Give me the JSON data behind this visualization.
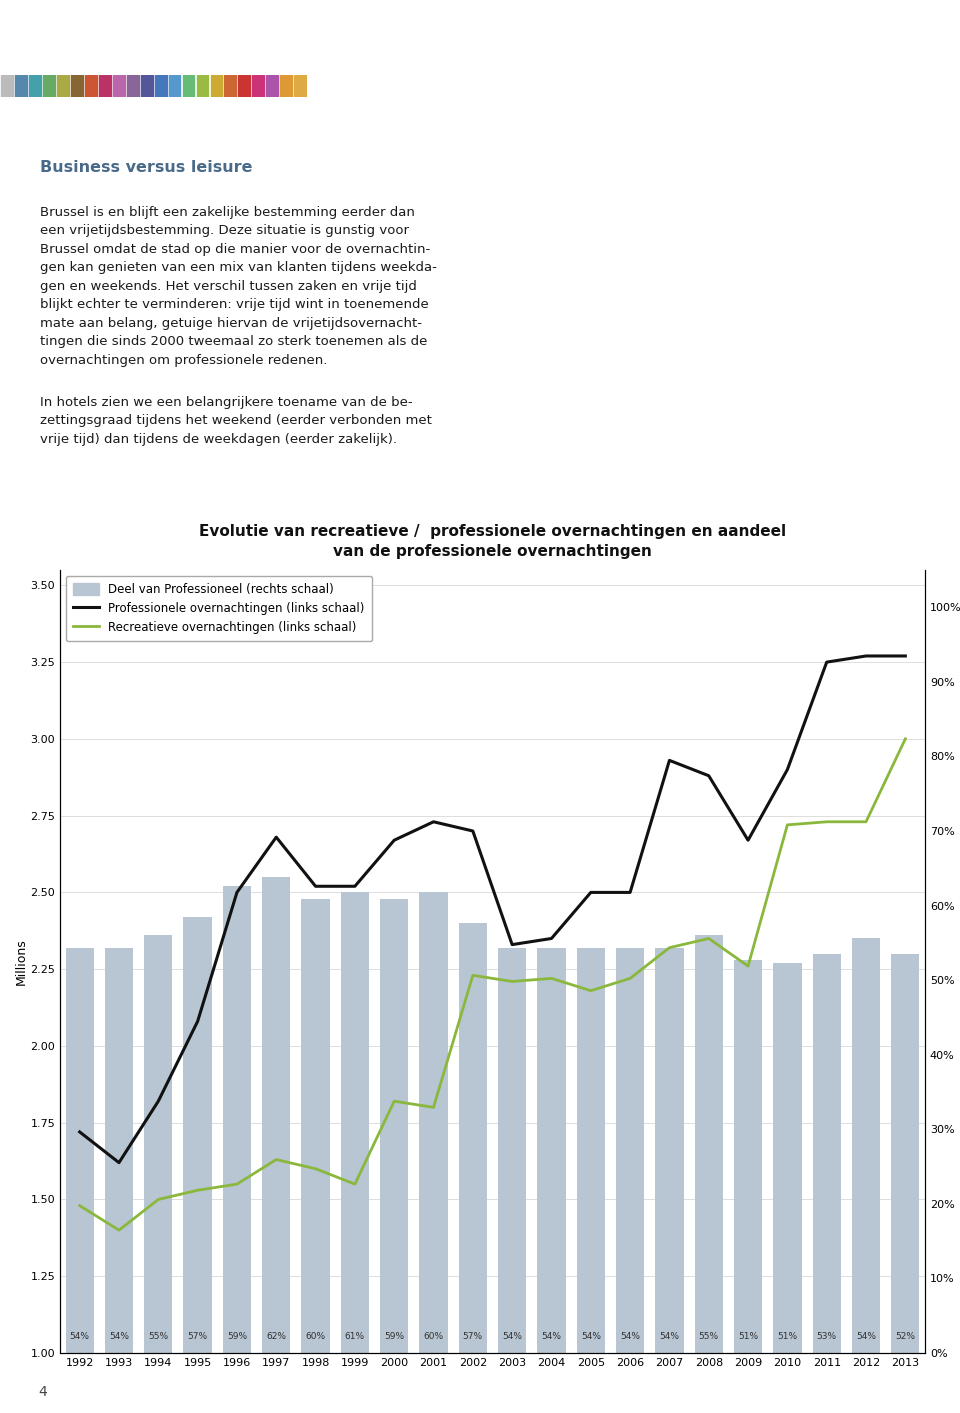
{
  "title_line1": "Evolutie van recreatieve /  professionele overnachtingen en aandeel",
  "title_line2": "van de professionele overnachtingen",
  "header_bg": "#5f7080",
  "years": [
    1992,
    1993,
    1994,
    1995,
    1996,
    1997,
    1998,
    1999,
    2000,
    2001,
    2002,
    2003,
    2004,
    2005,
    2006,
    2007,
    2008,
    2009,
    2010,
    2011,
    2012,
    2013
  ],
  "bar_values": [
    2.32,
    2.32,
    2.36,
    2.42,
    2.52,
    2.55,
    2.48,
    2.5,
    2.48,
    2.5,
    2.4,
    2.32,
    2.32,
    2.32,
    2.32,
    2.32,
    2.36,
    2.28,
    2.27,
    2.3,
    2.35,
    2.3
  ],
  "professional_line": [
    1.72,
    1.62,
    1.82,
    2.08,
    2.5,
    2.68,
    2.52,
    2.52,
    2.67,
    2.73,
    2.7,
    2.33,
    2.35,
    2.5,
    2.5,
    2.93,
    2.88,
    2.67,
    2.9,
    3.25,
    3.27,
    3.27
  ],
  "recreational_line": [
    1.48,
    1.4,
    1.5,
    1.53,
    1.55,
    1.63,
    1.6,
    1.55,
    1.82,
    1.8,
    2.23,
    2.21,
    2.22,
    2.18,
    2.22,
    2.32,
    2.35,
    2.26,
    2.72,
    2.73,
    2.73,
    3.0
  ],
  "percentages": [
    54,
    54,
    55,
    57,
    59,
    62,
    60,
    61,
    59,
    60,
    57,
    54,
    54,
    54,
    54,
    54,
    55,
    51,
    51,
    53,
    54,
    52
  ],
  "bar_color": "#b8c5d2",
  "professional_color": "#111111",
  "recreational_color": "#8ab83c",
  "ylim_left": [
    1.0,
    3.55
  ],
  "yticks_left": [
    1.0,
    1.25,
    1.5,
    1.75,
    2.0,
    2.25,
    2.5,
    2.75,
    3.0,
    3.25,
    3.5
  ],
  "ytick_labels_right": [
    "0%",
    "10%",
    "20%",
    "30%",
    "40%",
    "50%",
    "60%",
    "70%",
    "80%",
    "90%",
    "100%"
  ],
  "yticks_right": [
    0.0,
    0.1,
    0.2,
    0.3,
    0.4,
    0.5,
    0.6,
    0.7,
    0.8,
    0.9,
    1.0
  ],
  "ylabel_left": "Millions",
  "legend_labels": [
    "Deel van Professioneel (rechts schaal)",
    "Professionele overnachtingen (links schaal)",
    "Recreatieve overnachtingen (links schaal)"
  ],
  "text_title": "Business versus leisure",
  "text_title_color": "#4a6a8a",
  "text_para1": "Brussel is en blijft een zakelijke bestemming eerder dan een vrijetijdsbestemming. Deze situatie is gunstig voor Brussel omdat de stad op die manier voor de overnachtin-gen kan genieten van een mix van klanten tijdens weekda-gen en weekends. Het verschil tussen zaken en vrije tijd blijkt echter te verminderen: vrije tijd wint in toenemende mate aan belang, getuige hiervan de vrijetijdsovernacht-tingen die sinds 2000 tweemaal zo sterk toenemen als de overnachtingen om professionele redenen.",
  "text_para2": "In hotels zien we een belangrijkere toename van de be-zettingsgraad tijdens het weekend (eerder verbonden met vrije tijd) dan tijdens de weekdagen (eerder zakelijk).",
  "page_number": "4",
  "colorbar_colors": [
    "#bbbbbb",
    "#5588aa",
    "#44a0aa",
    "#66aa66",
    "#aaaa44",
    "#886633",
    "#cc5533",
    "#bb3366",
    "#bb66aa",
    "#886699",
    "#555599",
    "#4477bb",
    "#5599cc",
    "#66bb77",
    "#99bb44",
    "#ccaa33",
    "#cc6633",
    "#cc3333",
    "#cc3377",
    "#aa55aa",
    "#dd9933",
    "#ddaa44"
  ]
}
